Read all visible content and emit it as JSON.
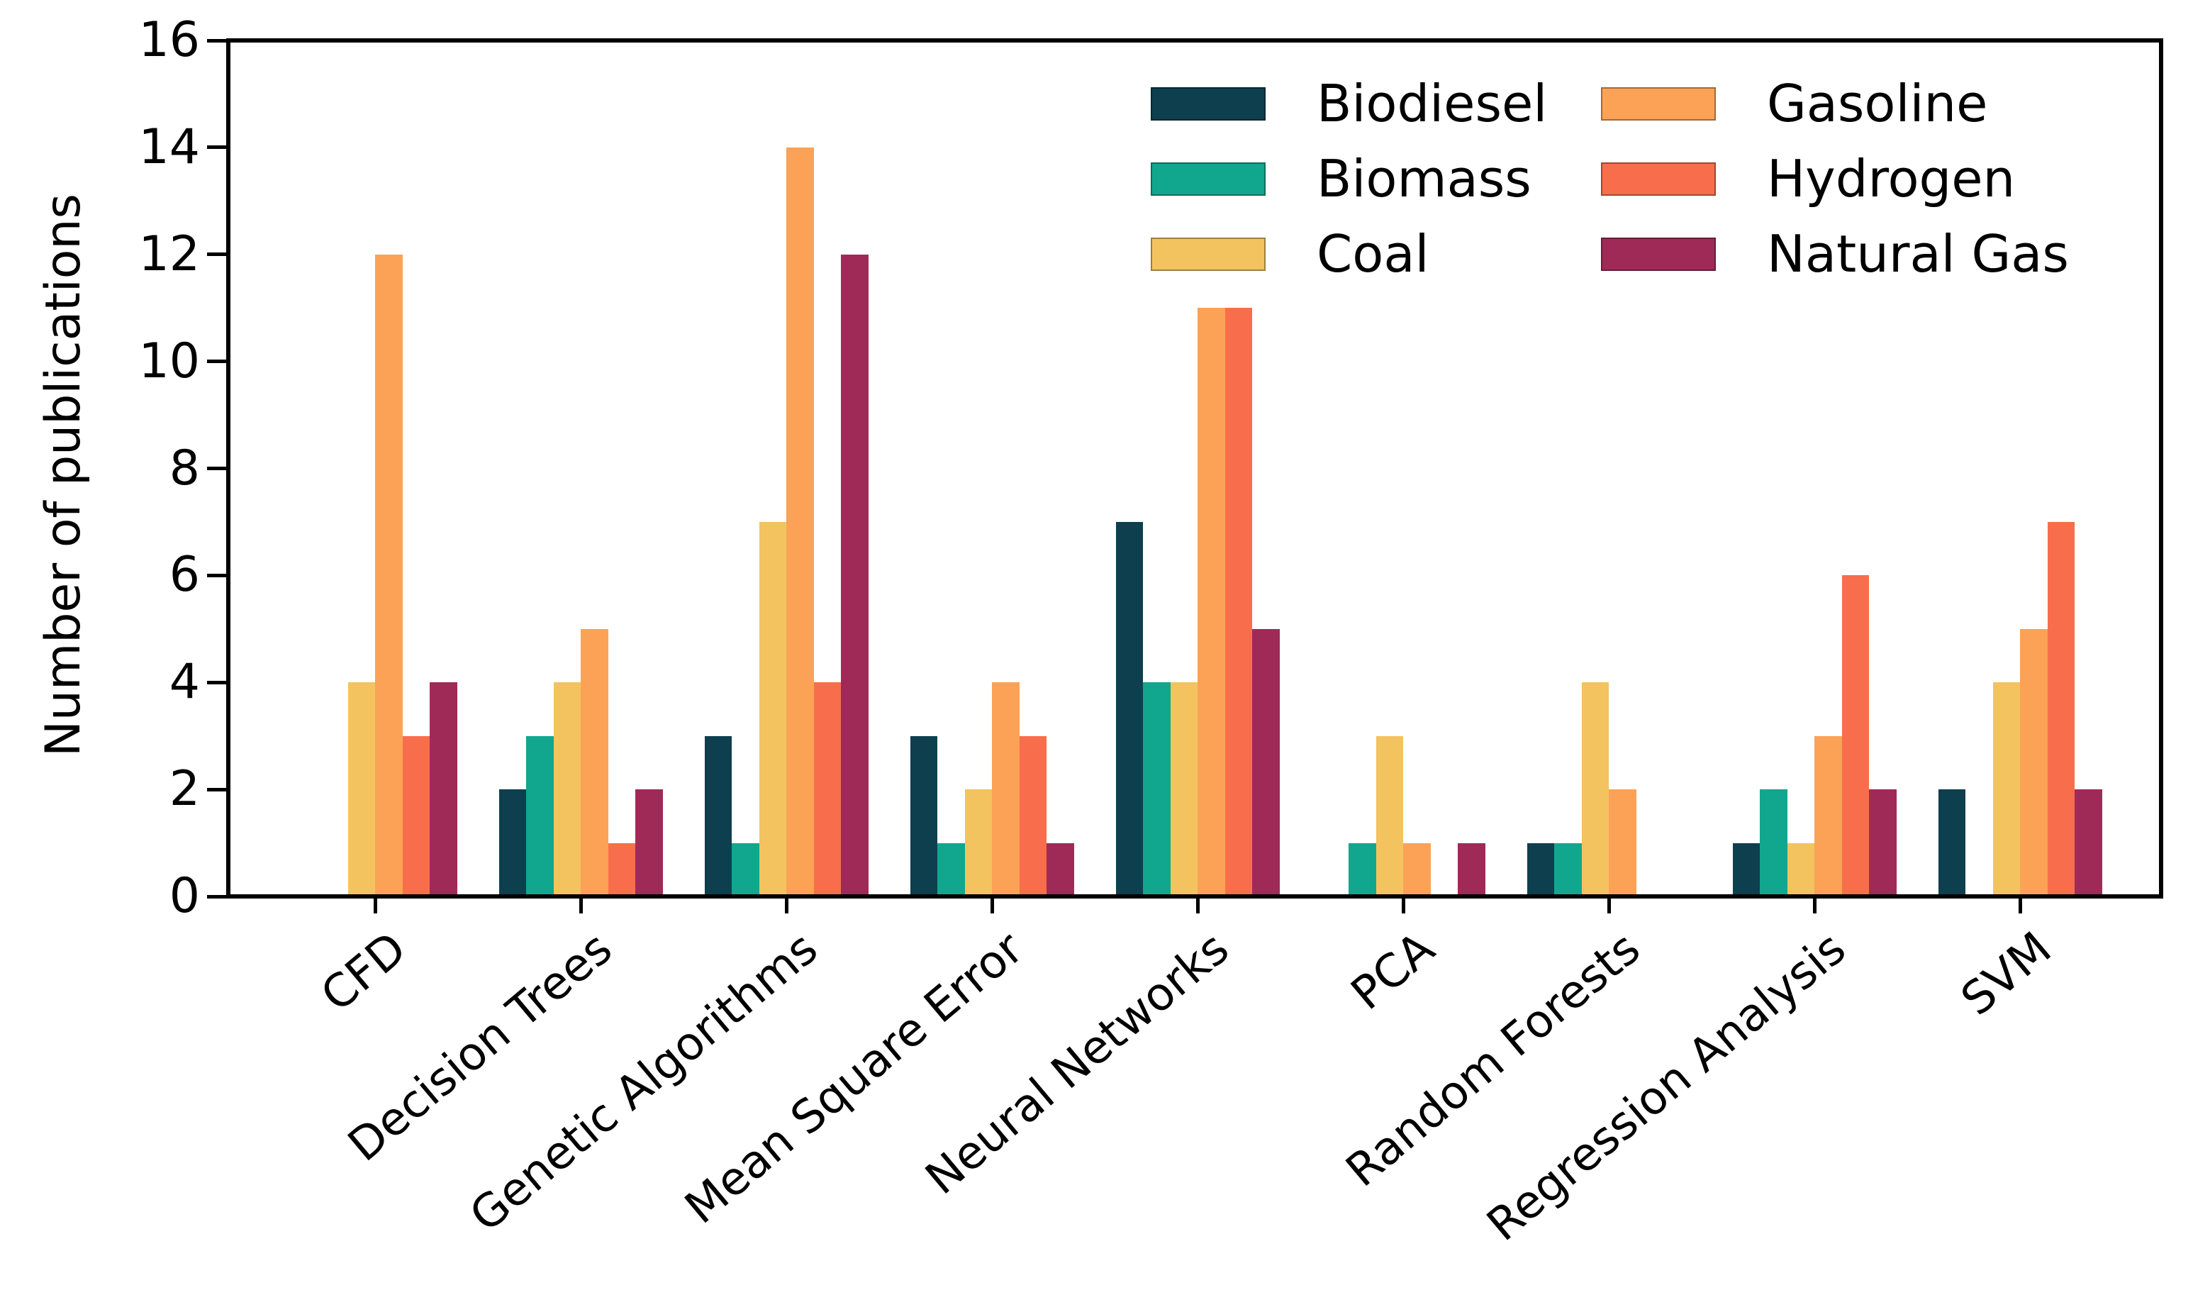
{
  "figure": {
    "background": "#ffffff",
    "axis_color": "#000000"
  },
  "chart_data": {
    "type": "bar",
    "title": "",
    "xlabel": "",
    "ylabel": "Number of publications",
    "ylim": [
      0,
      16
    ],
    "yticks": [
      0,
      2,
      4,
      6,
      8,
      10,
      12,
      14,
      16
    ],
    "grid": false,
    "x_tick_label_rotation_deg": 40,
    "legend_position": "upper-right",
    "legend_columns": 2,
    "categories": [
      "CFD",
      "Decision Trees",
      "Genetic Algorithms",
      "Mean Square Error",
      "Neural Networks",
      "PCA",
      "Random Forests",
      "Regression Analysis",
      "SVM"
    ],
    "series": [
      {
        "name": "Biodiesel",
        "color": "#0d3f4e",
        "values": [
          0,
          2,
          3,
          3,
          7,
          0,
          1,
          1,
          2
        ]
      },
      {
        "name": "Biomass",
        "color": "#10a78e",
        "values": [
          0,
          3,
          1,
          1,
          4,
          1,
          1,
          2,
          0
        ]
      },
      {
        "name": "Coal",
        "color": "#f3c360",
        "values": [
          4,
          4,
          7,
          2,
          4,
          3,
          4,
          1,
          4
        ]
      },
      {
        "name": "Gasoline",
        "color": "#fba257",
        "values": [
          12,
          5,
          14,
          4,
          11,
          1,
          2,
          3,
          5
        ]
      },
      {
        "name": "Hydrogen",
        "color": "#f86e4c",
        "values": [
          3,
          1,
          4,
          3,
          11,
          0,
          0,
          6,
          7
        ]
      },
      {
        "name": "Natural Gas",
        "color": "#a02a57",
        "values": [
          4,
          2,
          12,
          1,
          5,
          1,
          0,
          2,
          2
        ]
      }
    ]
  }
}
